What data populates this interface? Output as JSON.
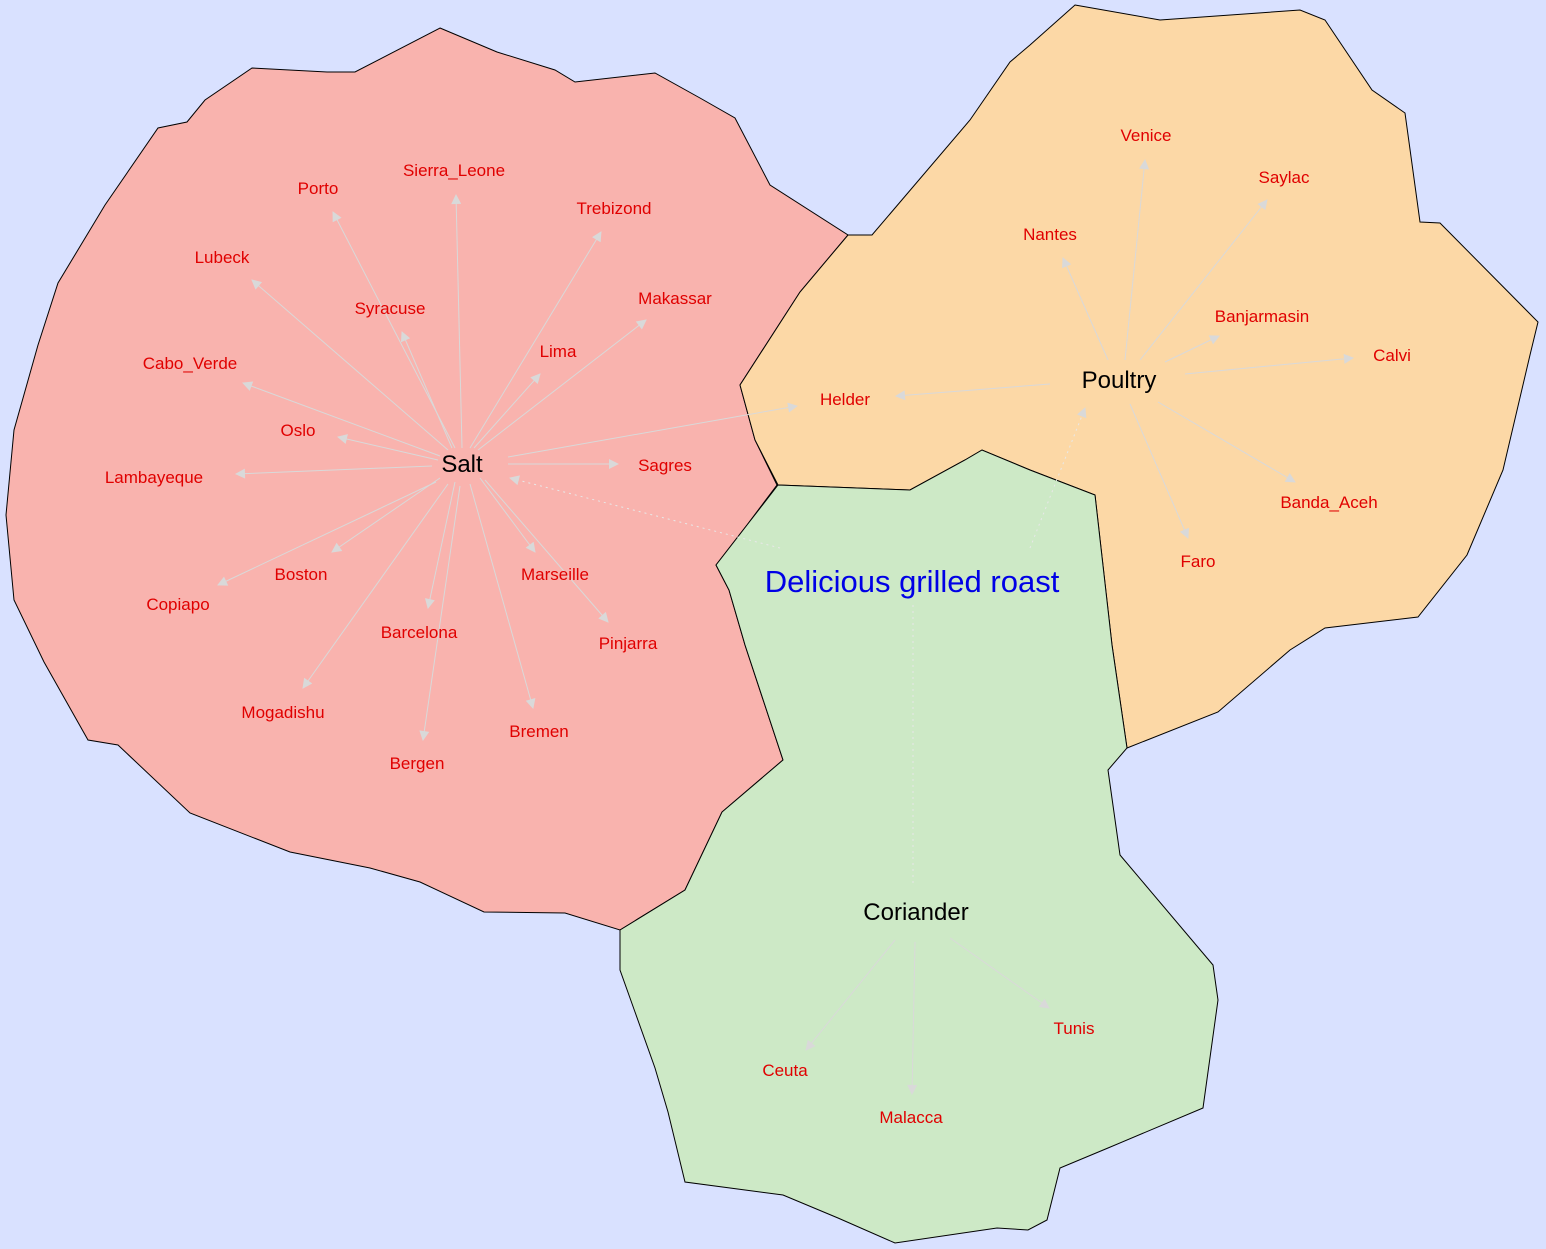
{
  "title": "Delicious grilled roast",
  "colors": {
    "background": "#d9e1ff",
    "salt_region": "#f9b3ae",
    "poultry_region": "#fcd8a6",
    "coriander_region": "#cde9c6",
    "city_text": "#e00000",
    "title_text": "#0000e6",
    "edge": "#d9d9d9"
  },
  "hubs": {
    "salt": "Salt",
    "poultry": "Poultry",
    "coriander": "Coriander"
  },
  "cities": {
    "salt": [
      "Sierra_Leone",
      "Porto",
      "Trebizond",
      "Lubeck",
      "Makassar",
      "Syracuse",
      "Lima",
      "Cabo_Verde",
      "Oslo",
      "Lambayeque",
      "Sagres",
      "Boston",
      "Marseille",
      "Copiapo",
      "Barcelona",
      "Pinjarra",
      "Mogadishu",
      "Bremen",
      "Bergen"
    ],
    "poultry": [
      "Venice",
      "Saylac",
      "Nantes",
      "Banjarmasin",
      "Calvi",
      "Helder",
      "Banda_Aceh",
      "Faro"
    ],
    "coriander": [
      "Tunis",
      "Ceuta",
      "Malacca"
    ]
  }
}
